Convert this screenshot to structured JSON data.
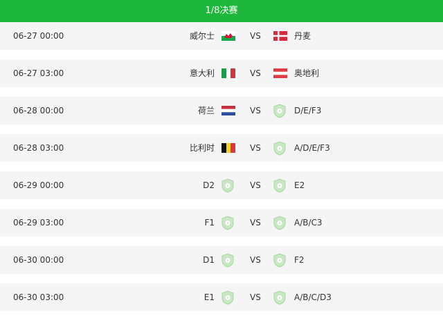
{
  "header": {
    "title": "1/8决赛"
  },
  "colors": {
    "accent": "#1db83b",
    "row_bg": "#f5f5f5"
  },
  "matches": [
    {
      "time": "06-27 00:00",
      "home": "威尔士",
      "home_flag": "wales",
      "vs": "VS",
      "away": "丹麦",
      "away_flag": "denmark"
    },
    {
      "time": "06-27 03:00",
      "home": "意大利",
      "home_flag": "italy",
      "vs": "VS",
      "away": "奥地利",
      "away_flag": "austria"
    },
    {
      "time": "06-28 00:00",
      "home": "荷兰",
      "home_flag": "netherlands",
      "vs": "VS",
      "away": "D/E/F3",
      "away_flag": "placeholder-shield"
    },
    {
      "time": "06-28 03:00",
      "home": "比利时",
      "home_flag": "belgium",
      "vs": "VS",
      "away": "A/D/E/F3",
      "away_flag": "placeholder-shield"
    },
    {
      "time": "06-29 00:00",
      "home": "D2",
      "home_flag": "placeholder-shield",
      "vs": "VS",
      "away": "E2",
      "away_flag": "placeholder-shield"
    },
    {
      "time": "06-29 03:00",
      "home": "F1",
      "home_flag": "placeholder-shield",
      "vs": "VS",
      "away": "A/B/C3",
      "away_flag": "placeholder-shield"
    },
    {
      "time": "06-30 00:00",
      "home": "D1",
      "home_flag": "placeholder-shield",
      "vs": "VS",
      "away": "F2",
      "away_flag": "placeholder-shield"
    },
    {
      "time": "06-30 03:00",
      "home": "E1",
      "home_flag": "placeholder-shield",
      "vs": "VS",
      "away": "A/B/C/D3",
      "away_flag": "placeholder-shield"
    }
  ]
}
